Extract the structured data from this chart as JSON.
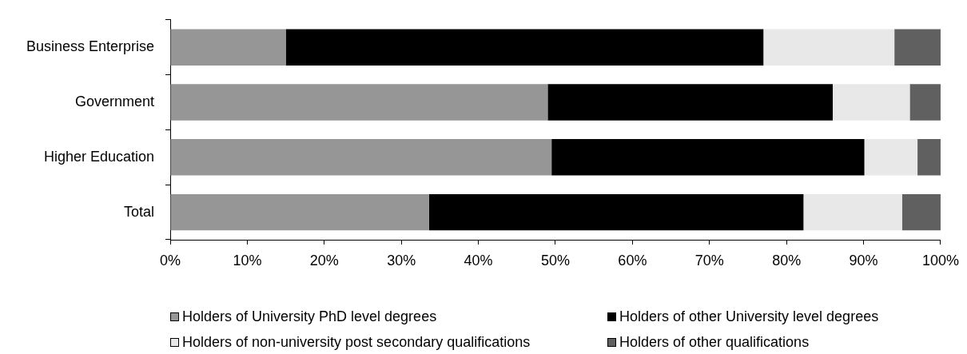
{
  "chart_data": {
    "type": "bar",
    "orientation": "horizontal",
    "stacked": true,
    "categories": [
      "Business Enterprise",
      "Government",
      "Higher Education",
      "Total"
    ],
    "series": [
      {
        "name": "Holders of University PhD level degrees",
        "color": "#969696",
        "values": [
          15,
          49,
          49.5,
          33.6
        ]
      },
      {
        "name": "Holders of other University level degrees",
        "color": "#000000",
        "values": [
          62,
          37,
          40.6,
          48.6
        ]
      },
      {
        "name": "Holders of non-university post secondary qualifications",
        "color": "#e8e8e8",
        "values": [
          17,
          10,
          6.9,
          12.8
        ]
      },
      {
        "name": "Holders of other qualifications",
        "color": "#606060",
        "values": [
          6,
          4,
          3,
          5
        ]
      }
    ],
    "xlim": [
      0,
      100
    ],
    "xticks": [
      {
        "value": 0,
        "label": "0%"
      },
      {
        "value": 10,
        "label": "10%"
      },
      {
        "value": 20,
        "label": "20%"
      },
      {
        "value": 30,
        "label": "30%"
      },
      {
        "value": 40,
        "label": "40%"
      },
      {
        "value": 50,
        "label": "50%"
      },
      {
        "value": 60,
        "label": "60%"
      },
      {
        "value": 70,
        "label": "70%"
      },
      {
        "value": 80,
        "label": "80%"
      },
      {
        "value": 90,
        "label": "90%"
      },
      {
        "value": 100,
        "label": "100%"
      }
    ],
    "grid": false,
    "legend": "bottom"
  }
}
